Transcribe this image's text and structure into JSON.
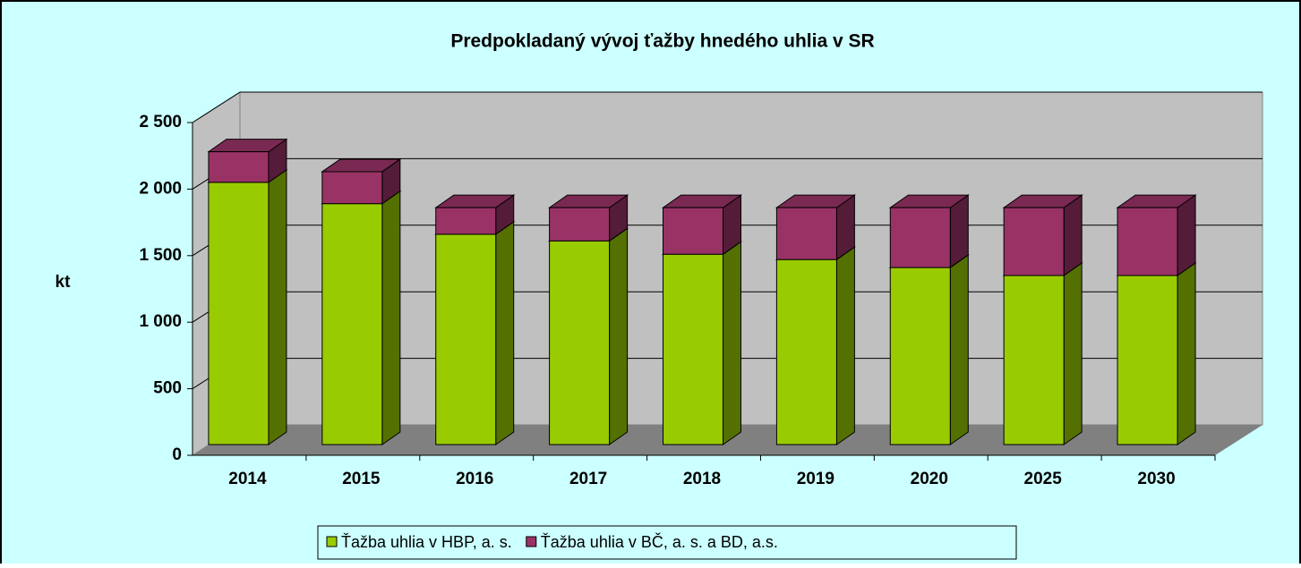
{
  "chart_data": {
    "type": "bar3d_stacked",
    "title": "Predpokladaný vývoj ťažby hnedého uhlia v SR",
    "y_label": "kt",
    "categories": [
      "2014",
      "2015",
      "2016",
      "2017",
      "2018",
      "2019",
      "2020",
      "2025",
      "2030"
    ],
    "series": [
      {
        "name": "Ťažba uhlia v HBP, a. s.",
        "color": "#99cc00",
        "values": [
          1970,
          1810,
          1580,
          1530,
          1430,
          1390,
          1330,
          1270,
          1270
        ]
      },
      {
        "name": "Ťažba uhlia v BČ, a. s. a BD, a.s.",
        "color": "#993366",
        "values": [
          230,
          240,
          200,
          250,
          350,
          390,
          450,
          510,
          510
        ]
      }
    ],
    "ylim": [
      0,
      2500
    ],
    "yticks": [
      0,
      500,
      {
        "value": 1000,
        "label": "1 000"
      },
      {
        "value": 1500,
        "label": "1 500"
      },
      {
        "value": 2000,
        "label": "2 000"
      },
      {
        "value": 2500,
        "label": "2 500"
      }
    ],
    "grid": true,
    "legend": "bottom"
  }
}
